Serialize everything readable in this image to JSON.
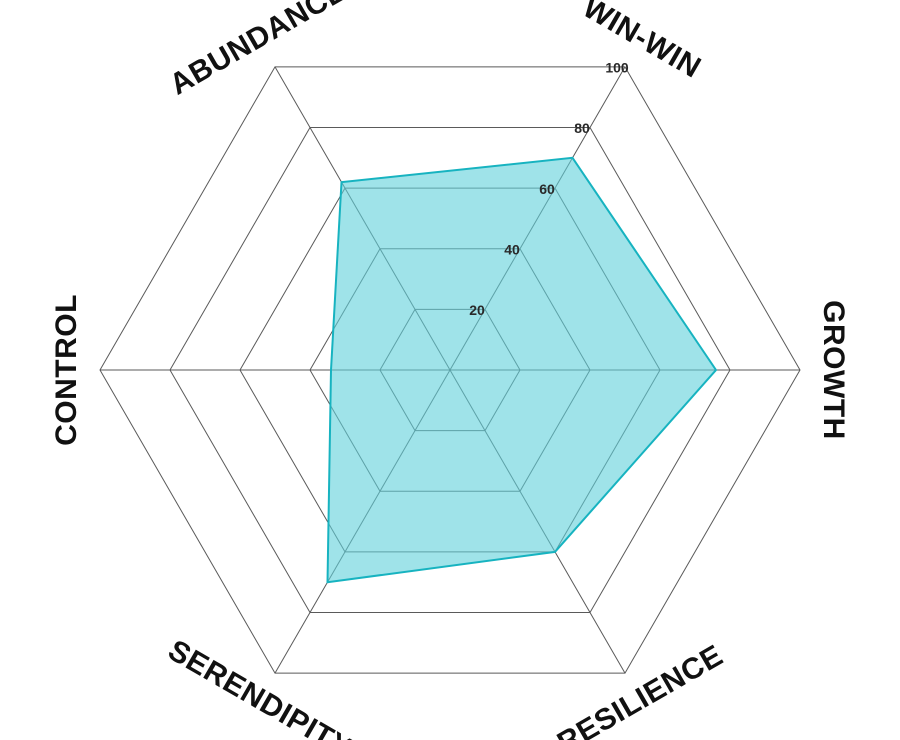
{
  "chart_data": {
    "type": "radar",
    "title": "",
    "categories": [
      "WIN-WIN",
      "GROWTH",
      "RESILIENCE",
      "SERENDIPITY",
      "CONTROL",
      "ABUNDANCE"
    ],
    "series": [
      {
        "values": [
          70,
          76,
          60,
          70,
          34,
          62
        ]
      }
    ],
    "r_ticks": [
      20,
      40,
      60,
      80,
      100
    ],
    "r_range": [
      0,
      100
    ],
    "grid": true,
    "colors": {
      "series_stroke": "#17b3c0",
      "series_fill": "#5fd0da",
      "series_fill_opacity": 0.6,
      "grid": "#5a5a5a",
      "label": "#111111"
    }
  }
}
